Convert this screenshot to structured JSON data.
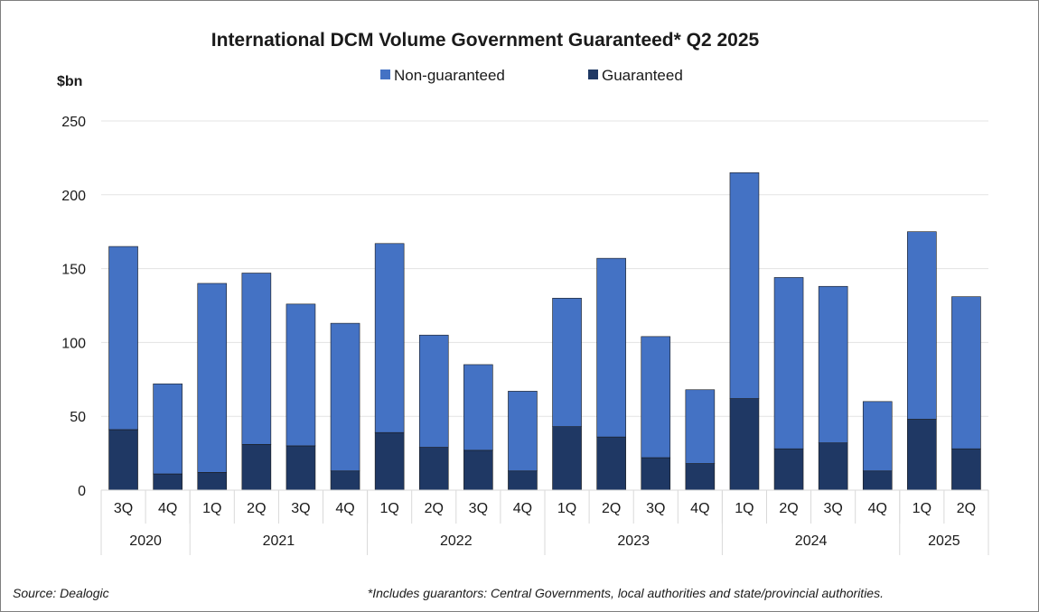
{
  "chart_data": {
    "type": "bar",
    "stacked": true,
    "title": "International DCM Volume Government Guaranteed* Q2 2025",
    "ylabel": "$bn",
    "ylim": [
      0,
      250
    ],
    "yticks": [
      0,
      50,
      100,
      150,
      200,
      250
    ],
    "categories": [
      "3Q",
      "4Q",
      "1Q",
      "2Q",
      "3Q",
      "4Q",
      "1Q",
      "2Q",
      "3Q",
      "4Q",
      "1Q",
      "2Q",
      "3Q",
      "4Q",
      "1Q",
      "2Q",
      "3Q",
      "4Q",
      "1Q",
      "2Q"
    ],
    "year_groups": [
      {
        "label": "2020",
        "count": 2
      },
      {
        "label": "2021",
        "count": 4
      },
      {
        "label": "2022",
        "count": 4
      },
      {
        "label": "2023",
        "count": 4
      },
      {
        "label": "2024",
        "count": 4
      },
      {
        "label": "2025",
        "count": 2
      }
    ],
    "series": [
      {
        "name": "Guaranteed",
        "color": "#1f3864",
        "values": [
          41,
          11,
          12,
          31,
          30,
          13,
          39,
          29,
          27,
          13,
          43,
          36,
          22,
          18,
          62,
          28,
          32,
          13,
          48,
          28
        ]
      },
      {
        "name": "Non-guaranteed",
        "color": "#4472c4",
        "values": [
          124,
          61,
          128,
          116,
          96,
          100,
          128,
          76,
          58,
          54,
          87,
          121,
          82,
          50,
          153,
          116,
          106,
          47,
          127,
          103
        ]
      }
    ],
    "legend": {
      "position": "top",
      "items": [
        "Non-guaranteed",
        "Guaranteed"
      ]
    },
    "grid": true
  },
  "footer": {
    "source": "Source: Dealogic",
    "note": "*Includes guarantors: Central Governments, local authorities and state/provincial authorities."
  }
}
